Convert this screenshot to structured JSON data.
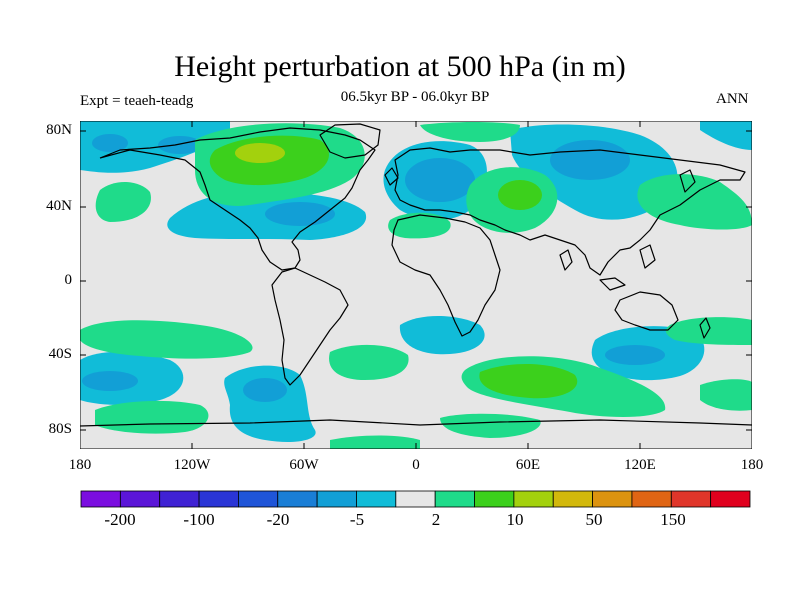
{
  "title": "Height perturbation at 500 hPa (in m)",
  "subtitle": "06.5kyr BP - 06.0kyr BP",
  "experiment": "Expt = teaeh-teadg",
  "season": "ANN",
  "lat_labels": [
    "80N",
    "40N",
    "0",
    "40S",
    "80S"
  ],
  "lon_labels": [
    "180",
    "120W",
    "60W",
    "0",
    "60E",
    "120E",
    "180"
  ],
  "colorbar": {
    "colors": [
      "#7b0ee0",
      "#5b16d8",
      "#3f22d4",
      "#2a35d6",
      "#1f55d8",
      "#1a7ed6",
      "#129fd6",
      "#11bcd8",
      "#e6e6e6",
      "#1fdb8a",
      "#3cd01c",
      "#a3d10d",
      "#d2b80b",
      "#dc930f",
      "#e06514",
      "#e0362a",
      "#e0001e"
    ],
    "labels": [
      "-200",
      "-100",
      "-20",
      "-5",
      "2",
      "10",
      "50",
      "150"
    ]
  },
  "colors": {
    "background_field": "#e6e6e6",
    "pos1": "#1fdb8a",
    "pos2": "#3cd01c",
    "pos3": "#a3d10d",
    "neg1": "#11bcd8",
    "neg2": "#129fd6"
  }
}
